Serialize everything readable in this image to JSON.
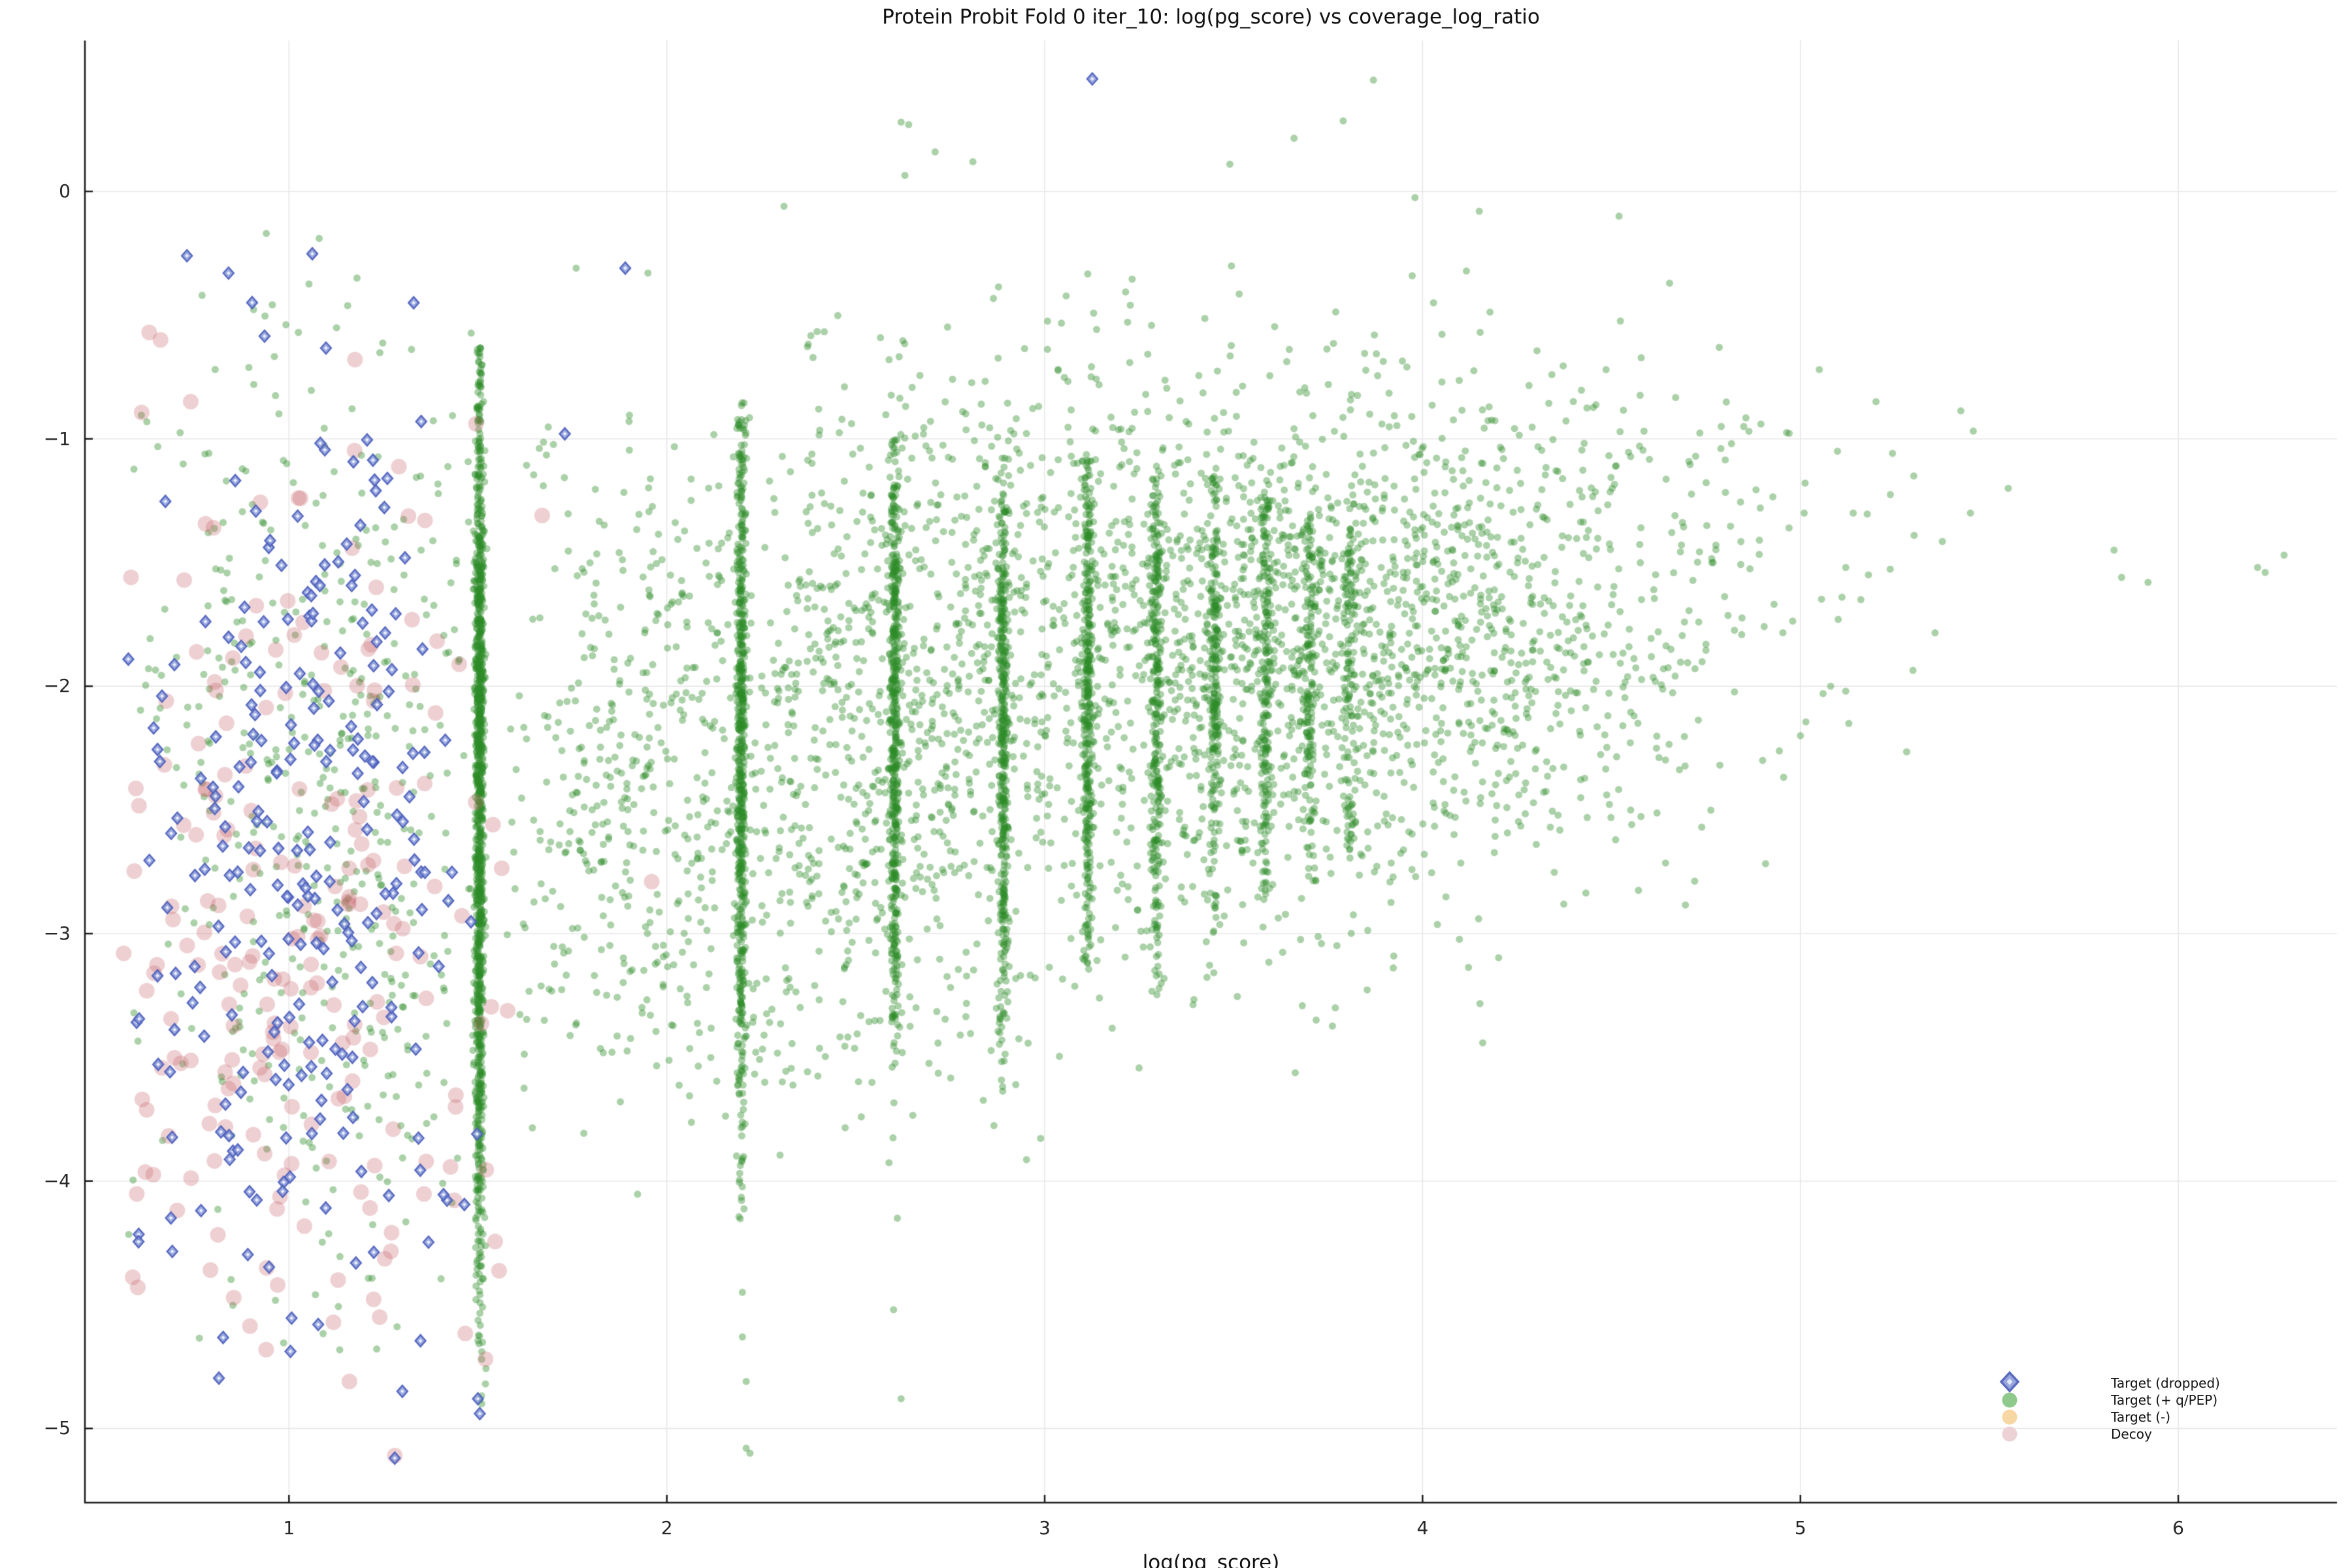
{
  "colors": {
    "background": "#ffffff",
    "grid": "#e7e7e7",
    "spine": "#1a1a1a",
    "tick_text": "#262626",
    "green_point": "rgba(45,140,40,0.40)",
    "pink_point": "rgba(200,100,105,0.30)",
    "blue_diamond_fill": "rgba(130,148,215,0.80)",
    "blue_diamond_edge": "rgba(80,98,190,0.95)",
    "blue_diamond_center": "rgba(240,246,255,0.92)",
    "legend_diamond_fill": "#98a6dc",
    "legend_diamond_edge": "#5b6cc0",
    "legend_diamond_center": "#dde7f8",
    "legend_green": "#8fc98c",
    "legend_yellow": "#f7d7a3",
    "legend_pink": "#ecd2d4"
  },
  "chart_data": {
    "type": "scatter",
    "title": "Protein Probit Fold 0 iter_10: log(pg_score) vs coverage_log_ratio",
    "xlabel": "log(pg_score)",
    "x_ticks": [
      1,
      2,
      3,
      4,
      5,
      6
    ],
    "y_ticks": [
      0,
      -1,
      -2,
      -3,
      -4,
      -5
    ],
    "x_range": [
      0.46,
      6.42
    ],
    "y_range": [
      -5.3,
      0.61
    ],
    "grid": true,
    "legend_position": "lower right",
    "legend": [
      {
        "label": "Target (dropped)",
        "marker": "diamond"
      },
      {
        "label": "Target (+ q/PEP)",
        "marker": "circle-green"
      },
      {
        "label": "Target (-)",
        "marker": "circle-yellow"
      },
      {
        "label": "Decoy",
        "marker": "circle-pink"
      }
    ],
    "seed": 1337,
    "marker_geometry": {
      "green_radius": 5.5,
      "pink_radius": 12,
      "diamond_half_w": 8,
      "diamond_half_h": 9,
      "diamond_center_half": 3,
      "diamond_edge_width": 2.4
    },
    "series": [
      {
        "name": "Target (+ q/PEP)",
        "class": "green",
        "clusters": [
          {
            "n": 1150,
            "x": {
              "dist": "normal",
              "mu": 1.504,
              "sd": 0.006
            },
            "y": {
              "dist": "normal",
              "mu": -2.5,
              "sd": 1.0,
              "min": -4.92,
              "max": -0.62
            }
          },
          {
            "n": 600,
            "x": {
              "dist": "normal",
              "mu": 2.197,
              "sd": 0.006
            },
            "y": {
              "dist": "normal",
              "mu": -2.35,
              "sd": 0.85,
              "min": -4.2,
              "max": -0.85
            }
          },
          {
            "n": 480,
            "x": {
              "dist": "normal",
              "mu": 2.603,
              "sd": 0.006
            },
            "y": {
              "dist": "normal",
              "mu": -2.25,
              "sd": 0.8,
              "min": -3.55,
              "max": -1.0
            }
          },
          {
            "n": 400,
            "x": {
              "dist": "normal",
              "mu": 2.89,
              "sd": 0.006
            },
            "y": {
              "dist": "normal",
              "mu": -2.2,
              "sd": 0.75,
              "min": -3.65,
              "max": -1.05
            }
          },
          {
            "n": 340,
            "x": {
              "dist": "normal",
              "mu": 3.114,
              "sd": 0.006
            },
            "y": {
              "dist": "normal",
              "mu": -2.1,
              "sd": 0.7,
              "min": -3.2,
              "max": -1.05
            }
          },
          {
            "n": 280,
            "x": {
              "dist": "normal",
              "mu": 3.296,
              "sd": 0.007
            },
            "y": {
              "dist": "normal",
              "mu": -2.05,
              "sd": 0.65,
              "min": -3.3,
              "max": -1.1
            }
          },
          {
            "n": 230,
            "x": {
              "dist": "normal",
              "mu": 3.45,
              "sd": 0.007
            },
            "y": {
              "dist": "normal",
              "mu": -2.0,
              "sd": 0.6,
              "min": -3.0,
              "max": -1.15
            }
          },
          {
            "n": 190,
            "x": {
              "dist": "normal",
              "mu": 3.584,
              "sd": 0.007
            },
            "y": {
              "dist": "normal",
              "mu": -1.95,
              "sd": 0.6,
              "min": -2.9,
              "max": -1.15
            }
          },
          {
            "n": 150,
            "x": {
              "dist": "normal",
              "mu": 3.701,
              "sd": 0.008
            },
            "y": {
              "dist": "normal",
              "mu": -1.9,
              "sd": 0.55,
              "min": -2.8,
              "max": -1.2
            }
          },
          {
            "n": 120,
            "x": {
              "dist": "normal",
              "mu": 3.807,
              "sd": 0.008
            },
            "y": {
              "dist": "normal",
              "mu": -1.85,
              "sd": 0.5,
              "min": -2.7,
              "max": -1.2
            }
          },
          {
            "n": 800,
            "x": {
              "dist": "normal",
              "mu": 2.45,
              "sd": 0.33,
              "min": 1.6,
              "max": 3.0
            },
            "y": {
              "dist": "normal",
              "mu": -2.3,
              "sd": 0.75,
              "min": -4.0,
              "max": -0.6
            }
          },
          {
            "n": 260,
            "x": {
              "dist": "normal",
              "mu": 1.85,
              "sd": 0.18,
              "min": 1.57,
              "max": 2.15
            },
            "y": {
              "dist": "normal",
              "mu": -2.4,
              "sd": 0.8,
              "min": -4.3,
              "max": -0.7
            }
          },
          {
            "n": 1600,
            "x": {
              "dist": "normal",
              "mu": 3.35,
              "sd": 0.55,
              "min": 2.3,
              "max": 4.75
            },
            "y": {
              "dist": "normal",
              "mu": -1.85,
              "sd": 0.62,
              "min": -3.6,
              "max": -0.3
            }
          },
          {
            "n": 500,
            "x": {
              "dist": "normal",
              "mu": 3.9,
              "sd": 0.3,
              "min": 3.3,
              "max": 4.7
            },
            "y": {
              "dist": "normal",
              "mu": -1.7,
              "sd": 0.45,
              "min": -2.8,
              "max": -0.6
            }
          },
          {
            "n": 300,
            "x": {
              "dist": "normal",
              "mu": 4.35,
              "sd": 0.38,
              "min": 3.8,
              "max": 5.0
            },
            "y": {
              "dist": "normal",
              "mu": -1.7,
              "sd": 0.5,
              "min": -2.9,
              "max": -0.6
            }
          },
          {
            "n": 30,
            "x": {
              "dist": "uniform",
              "min": 4.7,
              "max": 5.5
            },
            "y": {
              "dist": "normal",
              "mu": -1.5,
              "sd": 0.5,
              "min": -2.6,
              "max": -0.6
            }
          },
          {
            "n": 480,
            "x": {
              "dist": "normal",
              "mu": 1.12,
              "sd": 0.26,
              "min": 0.55,
              "max": 1.49
            },
            "y": {
              "dist": "normal",
              "mu": -2.5,
              "sd": 1.05,
              "min": -4.7,
              "max": -0.25
            }
          }
        ],
        "points": [
          [
            2.62,
            0.28
          ],
          [
            2.64,
            0.27
          ],
          [
            2.71,
            0.16
          ],
          [
            2.81,
            0.12
          ],
          [
            2.63,
            0.065
          ],
          [
            3.87,
            0.45
          ],
          [
            3.79,
            0.285
          ],
          [
            3.66,
            0.215
          ],
          [
            3.49,
            0.11
          ],
          [
            3.98,
            -0.025
          ],
          [
            4.15,
            -0.08
          ],
          [
            4.52,
            -0.1
          ],
          [
            2.31,
            -0.06
          ],
          [
            1.95,
            -0.33
          ],
          [
            1.76,
            -0.31
          ],
          [
            0.94,
            -0.17
          ],
          [
            1.08,
            -0.19
          ],
          [
            0.77,
            -0.42
          ],
          [
            1.18,
            -0.35
          ],
          [
            5.83,
            -1.45
          ],
          [
            5.85,
            -1.56
          ],
          [
            5.92,
            -1.58
          ],
          [
            6.21,
            -1.52
          ],
          [
            6.23,
            -1.54
          ],
          [
            6.28,
            -1.47
          ],
          [
            5.12,
            -1.52
          ],
          [
            5.18,
            -1.55
          ],
          [
            5.11,
            -1.64
          ],
          [
            5.16,
            -1.65
          ],
          [
            5.1,
            -1.73
          ],
          [
            5.08,
            -2.0
          ],
          [
            5.12,
            -2.02
          ],
          [
            5.06,
            -2.03
          ],
          [
            4.97,
            -1.36
          ],
          [
            5.01,
            -1.3
          ],
          [
            5.05,
            -0.72
          ],
          [
            5.3,
            -1.15
          ],
          [
            5.45,
            -1.3
          ],
          [
            5.55,
            -1.2
          ],
          [
            4.9,
            -2.3
          ],
          [
            5.0,
            -2.2
          ],
          [
            4.85,
            -0.95
          ],
          [
            5.2,
            -0.85
          ],
          [
            2.2,
            -4.45
          ],
          [
            2.2,
            -4.63
          ],
          [
            2.21,
            -4.81
          ],
          [
            2.21,
            -5.08
          ],
          [
            2.22,
            -5.1
          ],
          [
            2.61,
            -4.15
          ],
          [
            2.6,
            -4.52
          ],
          [
            2.62,
            -4.88
          ],
          [
            1.51,
            -4.72
          ],
          [
            1.52,
            -4.82
          ],
          [
            1.51,
            -4.9
          ]
        ]
      },
      {
        "name": "Decoy",
        "class": "pink",
        "clusters": [
          {
            "n": 130,
            "x": {
              "dist": "normal",
              "mu": 1.08,
              "sd": 0.27,
              "min": 0.56,
              "max": 1.58
            },
            "y": {
              "dist": "normal",
              "mu": -3.55,
              "sd": 0.65,
              "min": -4.85,
              "max": -2.3
            }
          },
          {
            "n": 75,
            "x": {
              "dist": "normal",
              "mu": 1.0,
              "sd": 0.25,
              "min": 0.58,
              "max": 1.55
            },
            "y": {
              "dist": "normal",
              "mu": -2.3,
              "sd": 0.75,
              "min": -3.4,
              "max": -0.55
            }
          }
        ],
        "points": [
          [
            0.63,
            -0.57
          ],
          [
            0.66,
            -0.6
          ],
          [
            0.74,
            -0.85
          ],
          [
            1.36,
            -1.33
          ],
          [
            1.67,
            -1.31
          ],
          [
            1.21,
            -1.85
          ],
          [
            1.96,
            -2.79
          ],
          [
            1.16,
            -4.81
          ],
          [
            1.28,
            -5.11
          ],
          [
            1.52,
            -4.72
          ],
          [
            0.6,
            -4.43
          ],
          [
            1.13,
            -4.4
          ],
          [
            1.24,
            -4.55
          ],
          [
            0.97,
            -4.42
          ]
        ]
      },
      {
        "name": "Target (dropped)",
        "class": "blue",
        "clusters": [
          {
            "n": 150,
            "x": {
              "dist": "normal",
              "mu": 1.03,
              "sd": 0.27,
              "min": 0.57,
              "max": 1.53
            },
            "y": {
              "dist": "normal",
              "mu": -3.2,
              "sd": 0.85,
              "min": -4.95,
              "max": -1.4
            }
          },
          {
            "n": 95,
            "x": {
              "dist": "normal",
              "mu": 1.05,
              "sd": 0.25,
              "min": 0.6,
              "max": 1.5
            },
            "y": {
              "dist": "normal",
              "mu": -1.9,
              "sd": 0.75,
              "min": -3.0,
              "max": -0.25
            }
          }
        ],
        "points": [
          [
            0.73,
            -0.26
          ],
          [
            0.84,
            -0.33
          ],
          [
            1.33,
            -0.45
          ],
          [
            1.35,
            -0.93
          ],
          [
            1.73,
            -0.98
          ],
          [
            1.89,
            -0.31
          ],
          [
            3.126,
            0.455
          ],
          [
            1.28,
            -5.12
          ],
          [
            1.5,
            -4.88
          ],
          [
            1.505,
            -4.94
          ],
          [
            1.3,
            -4.85
          ]
        ]
      },
      {
        "name": "Target (-)",
        "class": "yellow",
        "clusters": [],
        "points": []
      }
    ]
  }
}
